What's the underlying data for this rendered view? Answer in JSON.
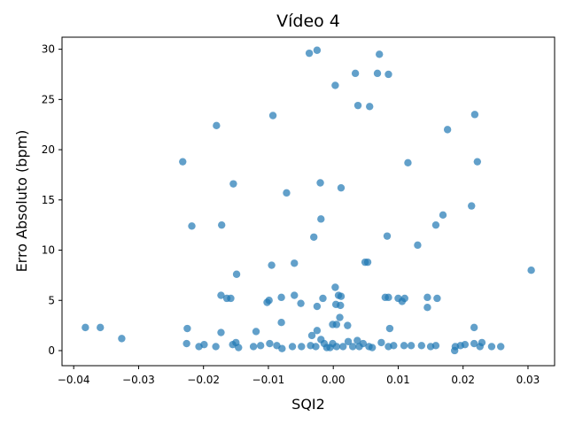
{
  "chart_data": {
    "type": "scatter",
    "title": "Vídeo 4",
    "xlabel": "SQI2",
    "ylabel": "Erro Absoluto (bpm)",
    "color": "#1f77b4",
    "x": [
      -0.0382,
      -0.0359,
      -0.0326,
      -0.0232,
      -0.0218,
      -0.0225,
      -0.0226,
      -0.018,
      -0.0172,
      -0.0154,
      -0.0149,
      -0.0173,
      -0.0164,
      -0.0158,
      -0.0173,
      -0.0207,
      -0.0199,
      -0.0181,
      -0.0155,
      -0.015,
      -0.0146,
      -0.0119,
      -0.0123,
      -0.0112,
      -0.0093,
      -0.0095,
      -0.0099,
      -0.0102,
      -0.008,
      -0.008,
      -0.0098,
      -0.0087,
      -0.0079,
      -0.0072,
      -0.006,
      -0.006,
      -0.005,
      -0.0063,
      -0.0049,
      -0.0037,
      -0.0025,
      -0.002,
      -0.0019,
      -0.003,
      -0.0016,
      -0.0025,
      -0.0025,
      -0.0033,
      -0.0019,
      -0.0035,
      -0.0027,
      -0.0014,
      -0.001,
      0.0003,
      0.0012,
      0.0003,
      0.0008,
      0.0012,
      0.0004,
      0.0011,
      0.001,
      -0.0001,
      0.0005,
      0.0022,
      -0.0001,
      0.0005,
      -0.0005,
      0.0015,
      0.0023,
      0.003,
      0.0034,
      0.0038,
      0.0056,
      0.0049,
      0.0053,
      0.0037,
      0.004,
      0.0046,
      0.0055,
      0.006,
      0.0068,
      0.0071,
      0.0085,
      0.0083,
      0.008,
      0.0085,
      0.0087,
      0.0074,
      0.0085,
      0.0093,
      0.01,
      0.0106,
      0.011,
      0.0115,
      0.0109,
      0.012,
      0.013,
      0.0145,
      0.0145,
      0.016,
      0.0158,
      0.0169,
      0.0176,
      0.0136,
      0.015,
      0.0158,
      0.0188,
      0.0187,
      0.0196,
      0.0203,
      0.0213,
      0.0218,
      0.0222,
      0.0217,
      0.0217,
      0.0229,
      0.0226,
      0.0244,
      0.0258,
      0.0305
    ],
    "y": [
      2.3,
      2.3,
      1.2,
      18.8,
      12.4,
      2.2,
      0.7,
      22.4,
      12.5,
      16.6,
      7.6,
      5.5,
      5.2,
      5.2,
      1.8,
      0.4,
      0.6,
      0.4,
      0.6,
      0.8,
      0.3,
      1.9,
      0.4,
      0.5,
      23.4,
      8.5,
      5.0,
      4.8,
      5.3,
      2.8,
      0.7,
      0.5,
      0.2,
      15.7,
      8.7,
      5.5,
      4.7,
      0.4,
      0.4,
      29.6,
      29.9,
      16.7,
      13.1,
      11.3,
      5.2,
      4.4,
      2.0,
      1.5,
      1.1,
      0.5,
      0.4,
      0.7,
      0.3,
      26.4,
      16.2,
      6.3,
      5.5,
      5.4,
      4.6,
      4.5,
      3.3,
      2.6,
      2.6,
      2.5,
      0.7,
      0.4,
      0.3,
      0.4,
      0.9,
      0.4,
      27.6,
      24.4,
      24.3,
      8.8,
      8.8,
      1.0,
      0.4,
      0.7,
      0.4,
      0.3,
      27.6,
      29.5,
      27.5,
      11.4,
      5.3,
      5.3,
      2.2,
      0.8,
      0.4,
      0.5,
      5.2,
      4.9,
      5.2,
      18.7,
      0.5,
      0.5,
      10.5,
      5.3,
      4.3,
      5.2,
      12.5,
      13.5,
      22.0,
      0.5,
      0.4,
      0.5,
      0.4,
      0.0,
      0.5,
      0.6,
      14.4,
      23.5,
      18.8,
      2.3,
      0.7,
      0.8,
      0.4,
      0.4,
      0.4,
      8.0
    ],
    "xlim": [
      -0.0418,
      0.0341
    ],
    "ylim": [
      -1.5,
      31.2
    ],
    "xticks": [
      {
        "value": -0.04,
        "label": "−0.04"
      },
      {
        "value": -0.03,
        "label": "−0.03"
      },
      {
        "value": -0.02,
        "label": "−0.02"
      },
      {
        "value": -0.01,
        "label": "−0.01"
      },
      {
        "value": 0,
        "label": "0.00"
      },
      {
        "value": 0.01,
        "label": "0.01"
      },
      {
        "value": 0.02,
        "label": "0.02"
      },
      {
        "value": 0.03,
        "label": "0.03"
      }
    ],
    "yticks": [
      0,
      5,
      10,
      15,
      20,
      25,
      30
    ]
  }
}
